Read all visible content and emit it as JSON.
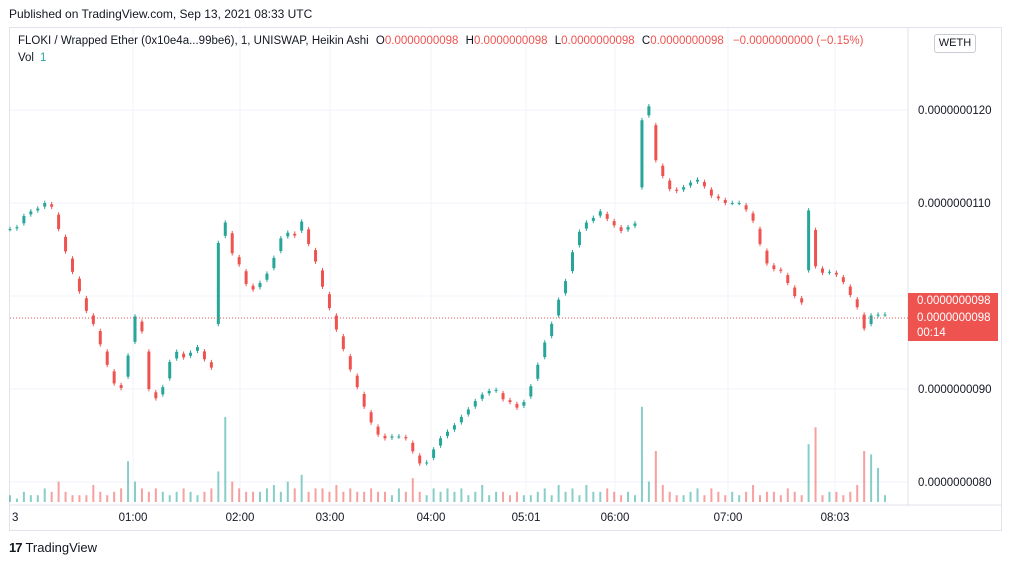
{
  "published": "Published on TradingView.com, Sep 13, 2021 08:33 UTC",
  "legend": {
    "symbol": "FLOKI / Wrapped Ether (0x10e4a...99be6), 1, UNISWAP, Heikin Ashi",
    "o_label": "O",
    "o_value": "0.0000000098",
    "h_label": "H",
    "h_value": "0.0000000098",
    "l_label": "L",
    "l_value": "0.0000000098",
    "c_label": "C",
    "c_value": "0.0000000098",
    "change": "−0.0000000000 (−0.15%)",
    "vol_label": "Vol",
    "vol_value": "1"
  },
  "currency_button": "WETH",
  "price_tag": {
    "price": "0.0000000098",
    "price2": "0.0000000098",
    "countdown": "00:14"
  },
  "brand": "TradingView",
  "colors": {
    "up": "#26a69a",
    "down": "#ef5350",
    "grid": "#f0f3fa"
  },
  "chart_data": {
    "type": "candlestick",
    "ylim": [
      7.8e-09,
      1.28e-08
    ],
    "y_ticks": [
      "0.0000000120",
      "0.0000000110",
      "0.0000000090",
      "0.0000000080"
    ],
    "x_ticks": [
      "3",
      "01:00",
      "02:00",
      "03:00",
      "04:00",
      "05:01",
      "06:00",
      "07:00",
      "08:03"
    ],
    "last_price": 9.8e-09,
    "close_series": [
      107.2,
      107.4,
      108.6,
      109.1,
      109.4,
      110.0,
      109.6,
      107.2,
      104.8,
      102.6,
      100.5,
      98.4,
      97.0,
      94.8,
      92.6,
      90.6,
      90.1,
      93.6,
      97.8,
      96.2,
      90.0,
      89.0,
      90.2,
      92.9,
      94.0,
      93.4,
      93.9,
      94.5,
      93.2,
      92.3,
      105.7,
      107.9,
      104.6,
      103.4,
      101.3,
      100.7,
      101.4,
      102.4,
      104.1,
      106.2,
      106.8,
      106.5,
      108.0,
      105.6,
      103.7,
      101.0,
      98.7,
      96.4,
      94.3,
      92.1,
      90.2,
      88.1,
      86.4,
      85.1,
      84.7,
      84.9,
      84.9,
      84.7,
      83.3,
      82.0,
      82.1,
      83.5,
      84.7,
      85.4,
      86.1,
      87.0,
      87.8,
      88.7,
      89.4,
      89.8,
      89.9,
      88.9,
      88.6,
      88.0,
      88.6,
      90.3,
      92.6,
      95.0,
      97.0,
      99.6,
      101.6,
      104.7,
      106.9,
      107.9,
      108.4,
      109.1,
      108.3,
      107.6,
      107.0,
      107.4,
      107.8,
      118.9,
      120.4,
      114.6,
      112.9,
      111.5,
      111.3,
      111.7,
      112.2,
      112.5,
      111.8,
      110.8,
      110.5,
      110.0,
      110.0,
      110.0,
      109.3,
      108.1,
      105.6,
      103.5,
      102.9,
      102.7,
      101.4,
      100.0,
      99.3,
      109.2,
      103.2,
      102.5,
      102.6,
      102.3,
      101.5,
      100.1,
      98.8,
      96.5,
      97.9,
      98.0,
      98.0
    ],
    "volume_series": [
      2,
      1,
      3,
      2,
      2,
      4,
      3,
      6,
      3,
      2,
      2,
      2,
      5,
      3,
      2,
      3,
      4,
      12,
      6,
      4,
      3,
      4,
      3,
      2,
      3,
      4,
      3,
      2,
      3,
      4,
      9,
      25,
      6,
      4,
      3,
      3,
      3,
      4,
      5,
      3,
      6,
      4,
      8,
      3,
      4,
      4,
      3,
      5,
      3,
      4,
      3,
      3,
      4,
      3,
      3,
      2,
      4,
      3,
      7,
      3,
      2,
      4,
      3,
      4,
      3,
      4,
      2,
      3,
      5,
      2,
      3,
      3,
      2,
      3,
      2,
      2,
      3,
      4,
      2,
      5,
      3,
      4,
      2,
      5,
      3,
      3,
      4,
      3,
      2,
      3,
      2,
      28,
      6,
      15,
      5,
      3,
      2,
      2,
      3,
      4,
      2,
      4,
      3,
      2,
      3,
      2,
      3,
      5,
      2,
      3,
      3,
      2,
      4,
      3,
      2,
      17,
      22,
      2,
      3,
      3,
      2,
      3,
      5,
      15,
      14,
      10,
      2
    ]
  }
}
